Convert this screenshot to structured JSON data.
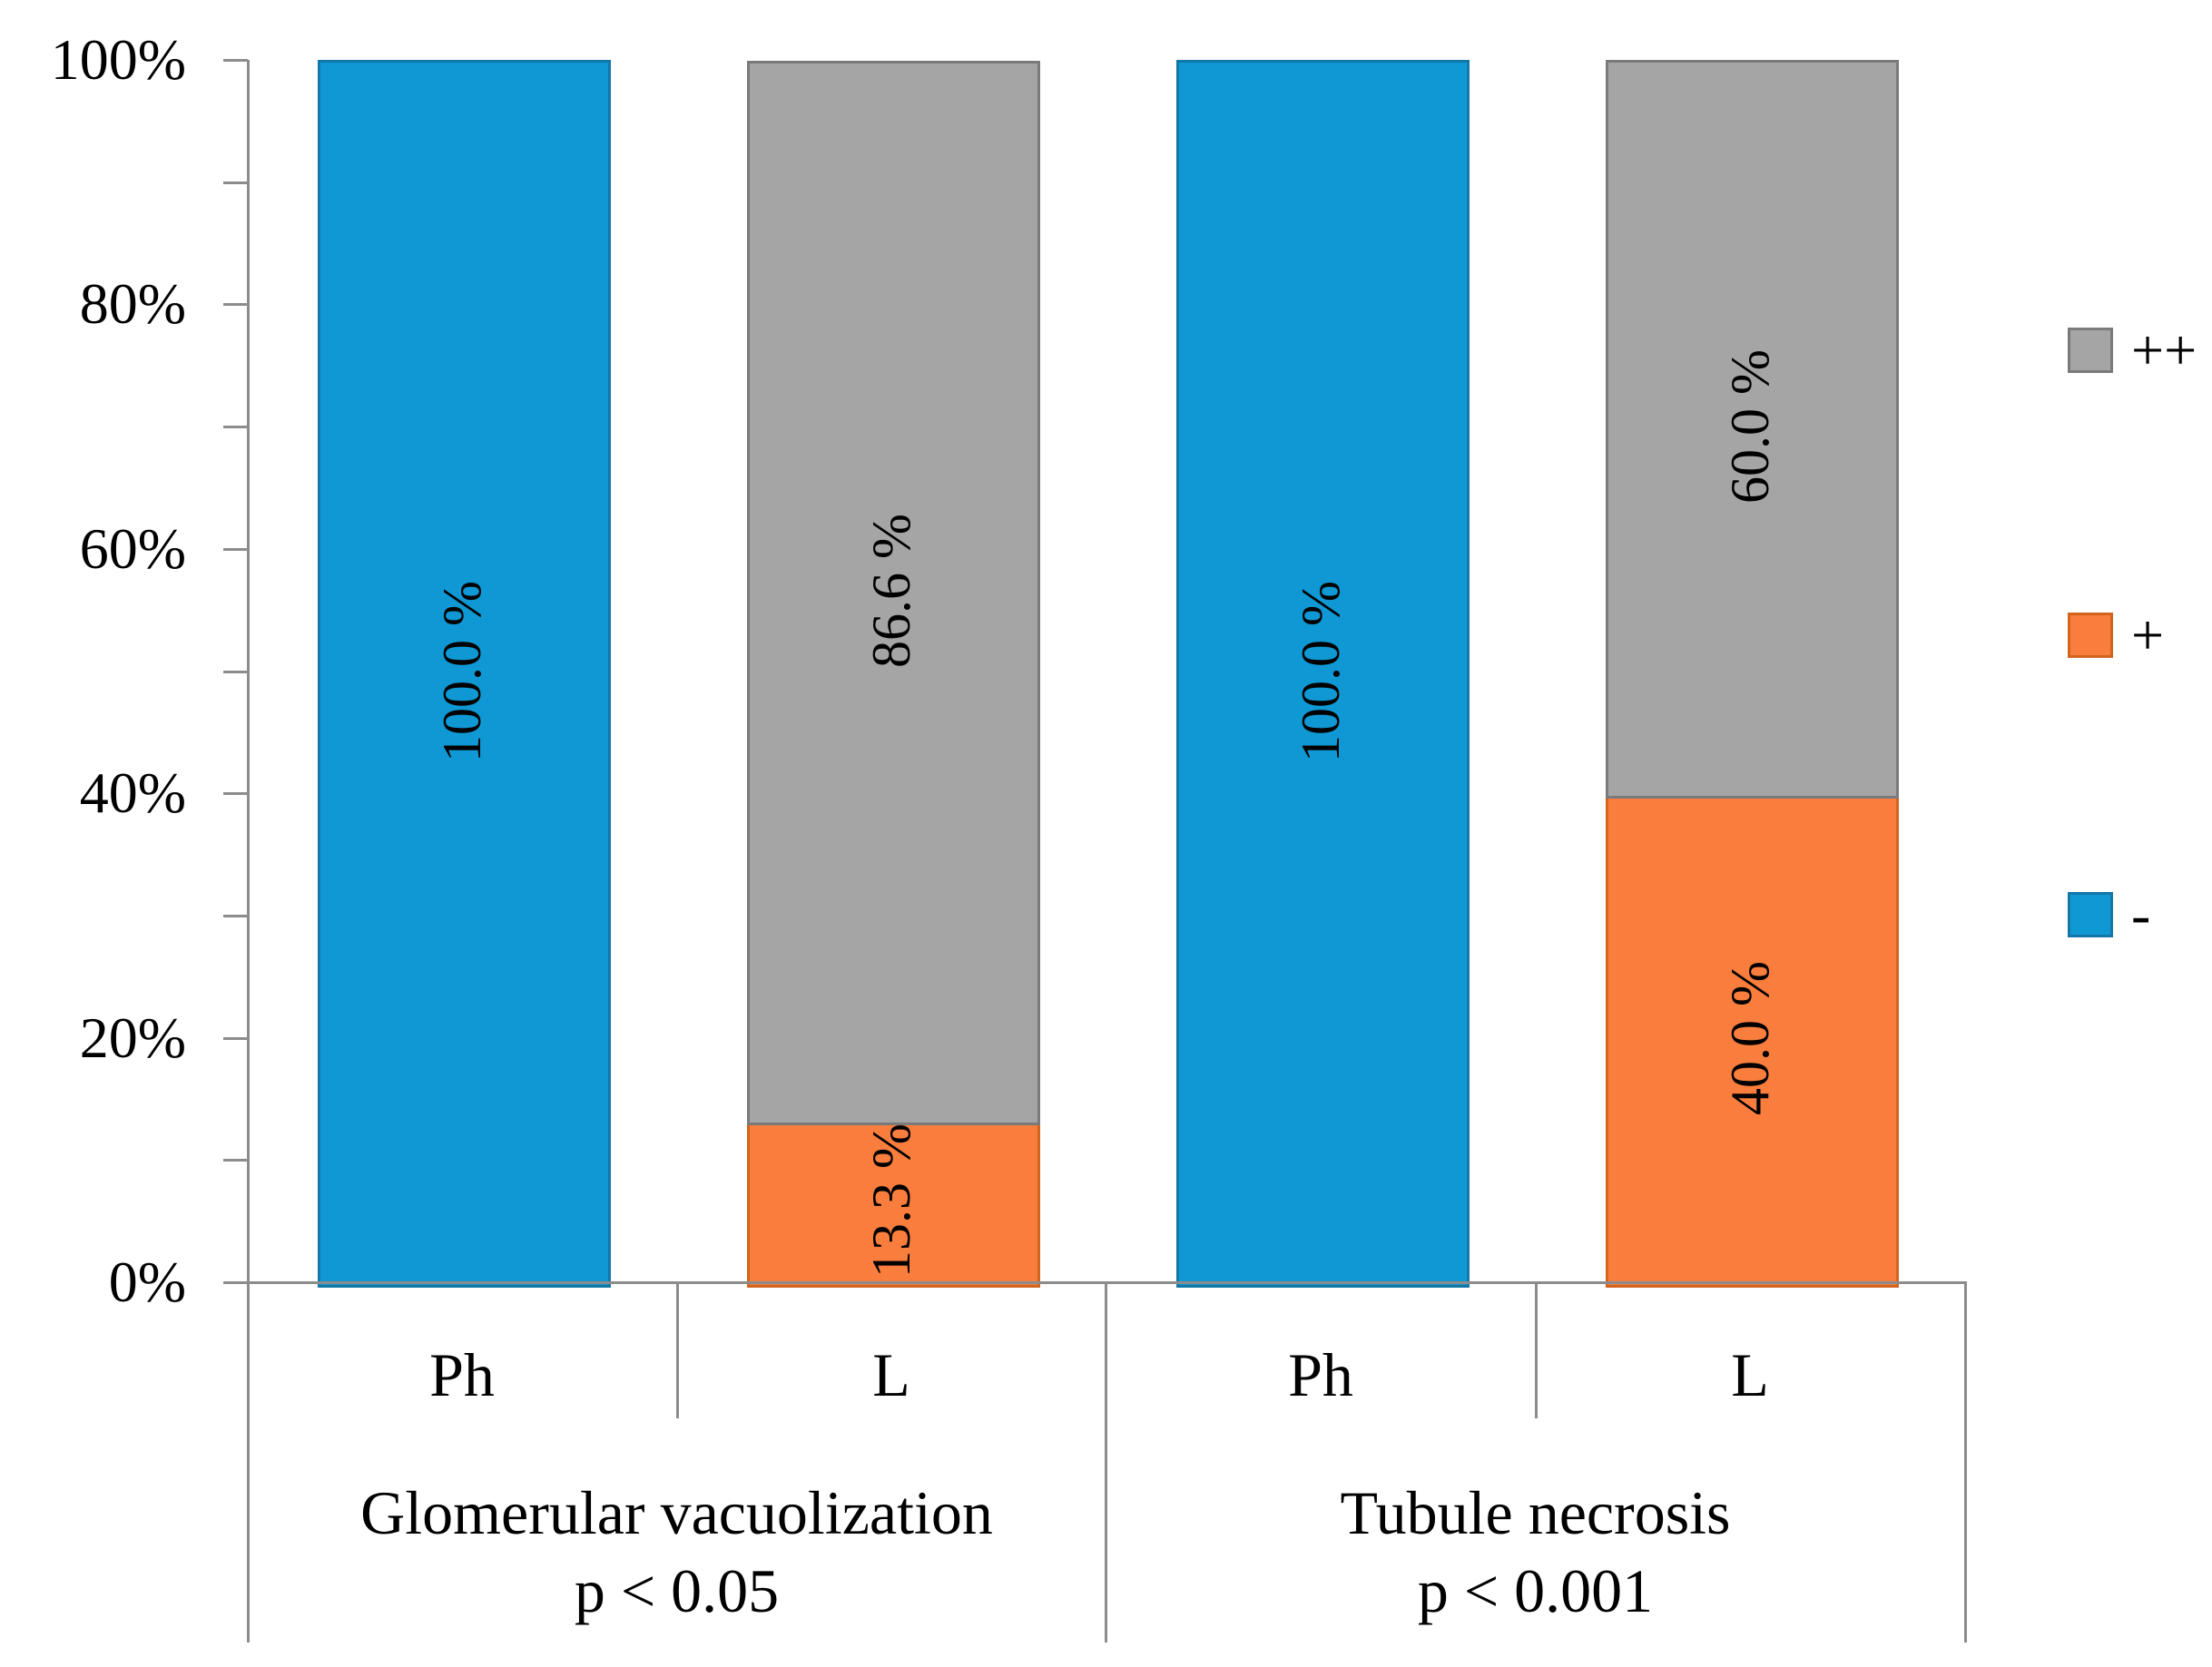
{
  "chart_data": {
    "type": "bar",
    "subtype": "stacked-100-percent",
    "title": "",
    "y_axis": {
      "range": [
        0,
        100
      ],
      "ticks": [
        {
          "percent": 0,
          "label": "0%"
        },
        {
          "percent": 20,
          "label": "20%"
        },
        {
          "percent": 40,
          "label": "40%"
        },
        {
          "percent": 60,
          "label": "60%"
        },
        {
          "percent": 80,
          "label": "80%"
        },
        {
          "percent": 100,
          "label": "100%"
        }
      ],
      "minor_tick_percents": [
        10,
        30,
        50,
        70,
        90
      ]
    },
    "series": [
      {
        "name": "++",
        "color": "#A5A5A5",
        "border_color": "#7A7A7A"
      },
      {
        "name": "+",
        "color": "#F97D3C",
        "border_color": "#D3641E"
      },
      {
        "name": "-",
        "color": "#0F98D4",
        "border_color": "#1377A8"
      }
    ],
    "groups": [
      {
        "label": "Glomerular vacuolization",
        "significance": "p < 0.05",
        "bars": [
          {
            "category": "Ph",
            "segments": [
              {
                "series": "-",
                "value": 100.0,
                "data_label": "100.0 %"
              }
            ]
          },
          {
            "category": "L",
            "segments": [
              {
                "series": "+",
                "value": 13.3,
                "data_label": "13.3 %"
              },
              {
                "series": "++",
                "value": 86.6,
                "data_label": "86.6 %"
              }
            ]
          }
        ]
      },
      {
        "label": "Tubule necrosis",
        "significance": "p < 0.001",
        "bars": [
          {
            "category": "Ph",
            "segments": [
              {
                "series": "-",
                "value": 100.0,
                "data_label": "100.0 %"
              }
            ]
          },
          {
            "category": "L",
            "segments": [
              {
                "series": "+",
                "value": 40.0,
                "data_label": "40.0 %"
              },
              {
                "series": "++",
                "value": 60.0,
                "data_label": "60.0 %"
              }
            ]
          }
        ]
      }
    ]
  },
  "legend": {
    "position": "right",
    "items": [
      {
        "label": "++",
        "color": "#A5A5A5",
        "border_color": "#7A7A7A"
      },
      {
        "label": "+",
        "color": "#F97D3C",
        "border_color": "#D3641E"
      },
      {
        "label": "-",
        "color": "#0F98D4",
        "border_color": "#1377A8"
      }
    ]
  },
  "colors": {
    "background": "#FFFFFF",
    "axis_line": "#8C8C8C",
    "text": "#000000"
  }
}
